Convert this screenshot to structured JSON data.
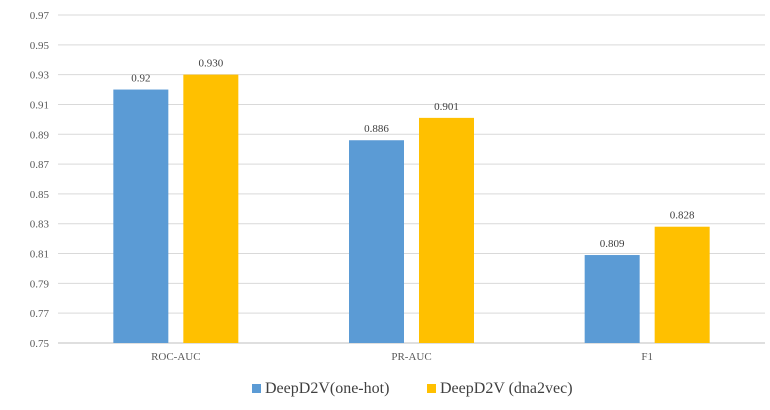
{
  "chart_data": {
    "type": "bar",
    "categories": [
      "ROC-AUC",
      "PR-AUC",
      "F1"
    ],
    "series": [
      {
        "name": "DeepD2V(one-hot)",
        "values": [
          0.92,
          0.886,
          0.809
        ],
        "labels": [
          "0.92",
          "0.886",
          "0.809"
        ],
        "color": "#5b9bd5"
      },
      {
        "name": "DeepD2V (dna2vec)",
        "values": [
          0.93,
          0.901,
          0.828
        ],
        "labels": [
          "0.930",
          "0.901",
          "0.828"
        ],
        "color": "#ffc000"
      }
    ],
    "yticks": [
      "0.75",
      "0.77",
      "0.79",
      "0.81",
      "0.83",
      "0.85",
      "0.87",
      "0.89",
      "0.91",
      "0.93",
      "0.95",
      "0.97"
    ],
    "ylim": [
      0.75,
      0.97
    ],
    "grid": true,
    "legend": "bottom"
  }
}
